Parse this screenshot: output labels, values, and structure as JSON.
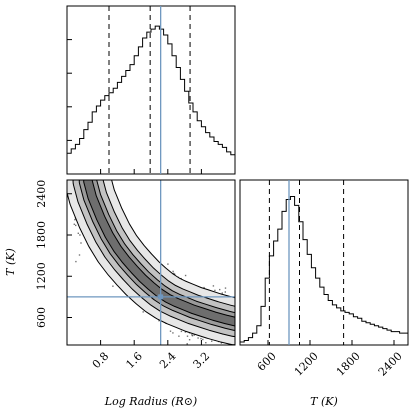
{
  "chart_data": [
    {
      "type": "histogram",
      "panel": "top-left",
      "variable": "Log Radius",
      "xlim": [
        0,
        4
      ],
      "quantile_lines": [
        1.0,
        1.98,
        2.93
      ],
      "truth_value": 2.23,
      "style": {
        "line_color": "#000000",
        "truth_color": "#6f97bf"
      },
      "bins_x": [
        0.0,
        0.1,
        0.2,
        0.3,
        0.4,
        0.5,
        0.6,
        0.7,
        0.8,
        0.9,
        1.0,
        1.1,
        1.2,
        1.3,
        1.4,
        1.5,
        1.6,
        1.7,
        1.8,
        1.9,
        2.0,
        2.1,
        2.2,
        2.3,
        2.4,
        2.5,
        2.6,
        2.7,
        2.8,
        2.9,
        3.0,
        3.1,
        3.2,
        3.3,
        3.4,
        3.5,
        3.6,
        3.7,
        3.8,
        3.9,
        4.0
      ],
      "counts": [
        0.14,
        0.17,
        0.2,
        0.24,
        0.3,
        0.35,
        0.42,
        0.46,
        0.5,
        0.53,
        0.55,
        0.58,
        0.62,
        0.66,
        0.7,
        0.74,
        0.8,
        0.86,
        0.92,
        0.96,
        0.98,
        1.0,
        0.98,
        0.94,
        0.88,
        0.8,
        0.72,
        0.64,
        0.56,
        0.48,
        0.42,
        0.36,
        0.32,
        0.28,
        0.25,
        0.22,
        0.2,
        0.18,
        0.15,
        0.13
      ]
    },
    {
      "type": "heatmap",
      "panel": "bottom-left",
      "xlabel": "Log Radius (R⊙)",
      "ylabel": "T (K)",
      "xticks": [
        "0.8",
        "1.6",
        "2.4",
        "3.2"
      ],
      "xtick_values": [
        0.8,
        1.6,
        2.4,
        3.2
      ],
      "yticks": [
        "600",
        "1200",
        "1800",
        "2400"
      ],
      "ytick_values": [
        600,
        1200,
        1800,
        2400
      ],
      "xlim": [
        0,
        4
      ],
      "ylim": [
        200,
        2600
      ],
      "truth": {
        "x": 2.23,
        "y": 900
      },
      "ridge": [
        [
          0.5,
          2580
        ],
        [
          0.6,
          2350
        ],
        [
          0.8,
          2050
        ],
        [
          1.0,
          1800
        ],
        [
          1.2,
          1600
        ],
        [
          1.4,
          1440
        ],
        [
          1.6,
          1300
        ],
        [
          1.8,
          1170
        ],
        [
          2.0,
          1060
        ],
        [
          2.2,
          960
        ],
        [
          2.4,
          880
        ],
        [
          2.6,
          820
        ],
        [
          2.8,
          770
        ],
        [
          3.0,
          720
        ],
        [
          3.2,
          680
        ],
        [
          3.5,
          620
        ],
        [
          3.8,
          570
        ],
        [
          4.0,
          540
        ]
      ],
      "contour_widths": [
        55,
        120,
        210,
        330
      ],
      "contour_fills": [
        "#6e6e6e",
        "#9a9a9a",
        "#c2c2c2",
        "#e7e7e7"
      ]
    },
    {
      "type": "histogram",
      "panel": "bottom-right",
      "variable": "T",
      "xlabel": "T (K)",
      "xticks": [
        "600",
        "1200",
        "1800",
        "2400"
      ],
      "xtick_values": [
        600,
        1200,
        1800,
        2400
      ],
      "xlim": [
        200,
        2600
      ],
      "quantile_lines": [
        620,
        1050,
        1680
      ],
      "truth_value": 900,
      "bins_x": [
        200,
        260,
        320,
        380,
        440,
        500,
        560,
        620,
        680,
        740,
        800,
        860,
        920,
        980,
        1040,
        1100,
        1160,
        1220,
        1280,
        1340,
        1400,
        1460,
        1520,
        1580,
        1640,
        1700,
        1760,
        1820,
        1880,
        1940,
        2000,
        2060,
        2120,
        2180,
        2240,
        2300,
        2360,
        2420,
        2480,
        2540,
        2600
      ],
      "counts": [
        0.02,
        0.03,
        0.05,
        0.08,
        0.13,
        0.26,
        0.45,
        0.6,
        0.7,
        0.78,
        0.9,
        0.98,
        1.0,
        0.94,
        0.83,
        0.71,
        0.61,
        0.52,
        0.45,
        0.39,
        0.34,
        0.3,
        0.27,
        0.25,
        0.23,
        0.22,
        0.21,
        0.19,
        0.18,
        0.16,
        0.15,
        0.14,
        0.13,
        0.12,
        0.11,
        0.1,
        0.09,
        0.09,
        0.08,
        0.08
      ]
    }
  ]
}
